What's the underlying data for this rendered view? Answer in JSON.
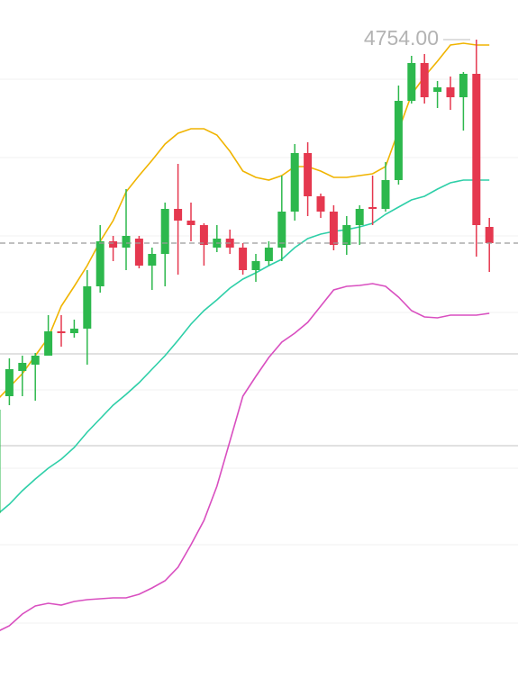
{
  "chart_data": {
    "type": "candlestick",
    "categories": [
      null,
      null,
      null,
      null,
      null,
      null,
      null,
      null,
      null,
      null,
      null,
      null,
      null,
      null,
      null,
      null,
      null,
      null,
      null,
      null,
      null,
      null,
      null,
      null,
      null,
      null,
      null,
      null,
      null,
      null,
      null,
      null,
      null,
      null,
      null,
      null,
      null,
      null,
      null
    ],
    "open": [
      4228,
      4358,
      4386,
      4393,
      4403,
      4430,
      4428,
      4433,
      4480,
      4530,
      4523,
      4533,
      4503,
      4516,
      4566,
      4553,
      4548,
      4523,
      4533,
      4523,
      4498,
      4508,
      4523,
      4563,
      4628,
      4580,
      4563,
      4526,
      4548,
      4568,
      4566,
      4598,
      4686,
      4728,
      4696,
      4701,
      4690,
      4716,
      4546
    ],
    "close": [
      4343,
      4388,
      4395,
      4403,
      4430,
      4428,
      4433,
      4480,
      4530,
      4523,
      4536,
      4503,
      4516,
      4566,
      4553,
      4548,
      4526,
      4533,
      4523,
      4498,
      4508,
      4523,
      4563,
      4628,
      4580,
      4563,
      4526,
      4548,
      4566,
      4566,
      4598,
      4686,
      4728,
      4690,
      4701,
      4690,
      4716,
      4548,
      4528
    ],
    "high": [
      4348,
      4400,
      4403,
      4406,
      4448,
      4448,
      4443,
      4498,
      4548,
      4536,
      4588,
      4536,
      4523,
      4573,
      4616,
      4573,
      4550,
      4548,
      4543,
      4528,
      4516,
      4530,
      4603,
      4638,
      4640,
      4583,
      4570,
      4558,
      4570,
      4603,
      4618,
      4703,
      4736,
      4738,
      4708,
      4713,
      4718,
      4754,
      4556
    ],
    "low": [
      4223,
      4348,
      4358,
      4353,
      4403,
      4413,
      4423,
      4393,
      4473,
      4508,
      4498,
      4500,
      4476,
      4480,
      4493,
      4530,
      4503,
      4518,
      4516,
      4493,
      4485,
      4503,
      4508,
      4553,
      4558,
      4556,
      4520,
      4515,
      4526,
      4548,
      4563,
      4593,
      4683,
      4683,
      4678,
      4676,
      4653,
      4513,
      4496
    ],
    "up_color": "#2db84d",
    "down_color": "#e5384f",
    "series": [
      {
        "color": "#f0b400",
        "values": [
          4353,
          4368,
          4383,
          4403,
          4423,
          4458,
          4480,
          4503,
          4530,
          4553,
          4585,
          4603,
          4620,
          4638,
          4650,
          4655,
          4655,
          4648,
          4630,
          4608,
          4601,
          4598,
          4603,
          4613,
          4613,
          4608,
          4601,
          4601,
          4603,
          4605,
          4613,
          4653,
          4693,
          4713,
          4730,
          4748,
          4750,
          4748,
          4748
        ]
      },
      {
        "color": "#2ecfa8",
        "values": [
          4226,
          4238,
          4253,
          4266,
          4278,
          4288,
          4301,
          4318,
          4333,
          4348,
          4360,
          4373,
          4388,
          4403,
          4420,
          4438,
          4453,
          4465,
          4478,
          4488,
          4495,
          4503,
          4510,
          4523,
          4533,
          4538,
          4541,
          4543,
          4546,
          4550,
          4560,
          4568,
          4576,
          4580,
          4588,
          4595,
          4598,
          4598,
          4598
        ]
      },
      {
        "color": "#d94fc0",
        "values": [
          4096,
          4103,
          4116,
          4125,
          4128,
          4126,
          4130,
          4132,
          4133,
          4134,
          4134,
          4138,
          4145,
          4153,
          4168,
          4193,
          4220,
          4258,
          4308,
          4358,
          4380,
          4401,
          4418,
          4428,
          4440,
          4458,
          4476,
          4480,
          4481,
          4483,
          4480,
          4468,
          4453,
          4446,
          4445,
          4448,
          4448,
          4448,
          4450
        ]
      }
    ],
    "ylim": [
      4045,
      4798
    ],
    "annotations": [
      {
        "value": 4754,
        "label": "4754.00"
      }
    ]
  }
}
